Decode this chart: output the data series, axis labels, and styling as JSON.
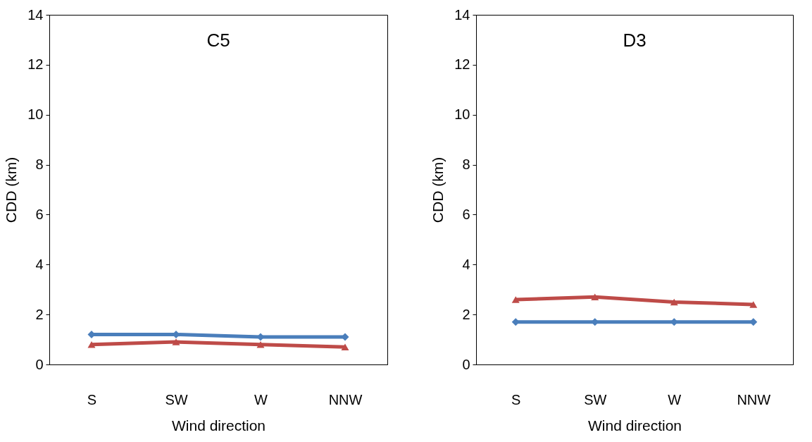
{
  "chart_data": [
    {
      "type": "line",
      "title": "C5",
      "xlabel": "Wind direction",
      "ylabel": "CDD (km)",
      "categories": [
        "S",
        "SW",
        "W",
        "NNW"
      ],
      "ylim": [
        0,
        14
      ],
      "yticks": [
        0,
        2,
        4,
        6,
        8,
        10,
        12,
        14
      ],
      "grid": false,
      "line_style": "solid",
      "series": [
        {
          "color": "#4a7ebb",
          "marker": "diamond",
          "values": [
            1.2,
            1.2,
            1.1,
            1.1
          ]
        },
        {
          "color": "#be4b48",
          "marker": "triangle",
          "values": [
            0.8,
            0.9,
            0.8,
            0.7
          ]
        }
      ]
    },
    {
      "type": "line",
      "title": "D3",
      "xlabel": "Wind direction",
      "ylabel": "CDD (km)",
      "categories": [
        "S",
        "SW",
        "W",
        "NNW"
      ],
      "ylim": [
        0,
        14
      ],
      "yticks": [
        0,
        2,
        4,
        6,
        8,
        10,
        12,
        14
      ],
      "grid": false,
      "line_style": "solid",
      "series": [
        {
          "color": "#4a7ebb",
          "marker": "diamond",
          "values": [
            1.7,
            1.7,
            1.7,
            1.7
          ]
        },
        {
          "color": "#be4b48",
          "marker": "triangle",
          "values": [
            2.6,
            2.7,
            2.5,
            2.4
          ]
        }
      ]
    }
  ]
}
